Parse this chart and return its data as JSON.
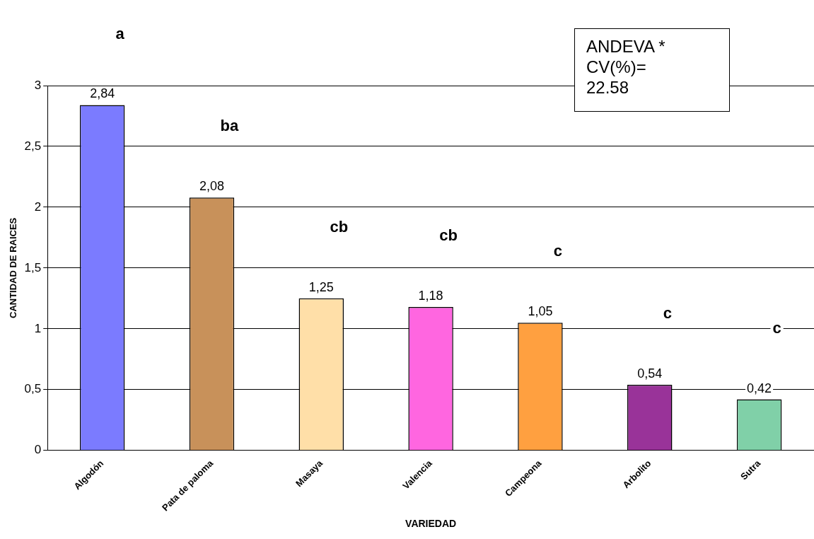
{
  "chart_data": {
    "type": "bar",
    "xlabel": "VARIEDAD",
    "ylabel": "CANTIDAD DE RAICES",
    "categories": [
      "Algodón",
      "Pata de paloma",
      "Masaya",
      "Valencia",
      "Campeona",
      "Arbolito",
      "Sutra"
    ],
    "values": [
      2.84,
      2.08,
      1.25,
      1.18,
      1.05,
      0.54,
      0.42
    ],
    "value_labels": [
      "2,84",
      "2,08",
      "1,25",
      "1,18",
      "1,05",
      "0,54",
      "0,42"
    ],
    "colors": [
      "#7b7bff",
      "#c8915a",
      "#ffdfa8",
      "#ff66e0",
      "#ffa040",
      "#993399",
      "#80d0a8"
    ],
    "ylim": [
      0,
      3
    ],
    "yticks": [
      0,
      {
        "value": 0.5,
        "label": "0,5"
      },
      1,
      {
        "value": 1.5,
        "label": "1,5"
      },
      2,
      {
        "value": 2.5,
        "label": "2,5"
      },
      3
    ],
    "grid": "y",
    "legend": false,
    "annotations": [
      "a",
      "ba",
      "cb",
      "cb",
      "c",
      "c",
      "c",
      "ANDEVA *\nCV(%)=\n22.58"
    ]
  }
}
